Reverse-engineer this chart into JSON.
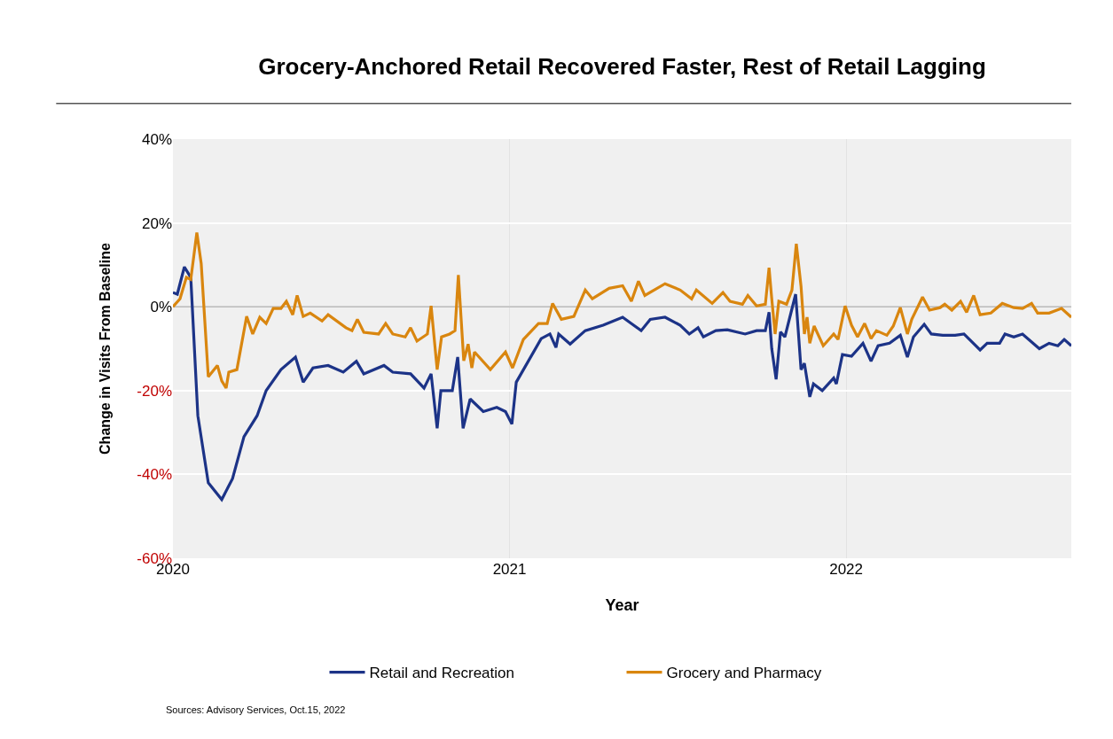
{
  "chart_data": {
    "type": "line",
    "title": "Grocery-Anchored Retail Recovered Faster, Rest of Retail Lagging",
    "xlabel": "Year",
    "ylabel": "Change in Visits From Baseline",
    "series": [
      {
        "name": "Retail and Recreation",
        "color": "#1c3387",
        "x": [
          2020.0,
          2020.013,
          2020.034,
          2020.053,
          2020.074,
          2020.105,
          2020.145,
          2020.177,
          2020.211,
          2020.25,
          2020.277,
          2020.321,
          2020.364,
          2020.387,
          2020.416,
          2020.461,
          2020.506,
          2020.545,
          2020.567,
          2020.627,
          2020.653,
          2020.706,
          2020.746,
          2020.767,
          2020.785,
          2020.796,
          2020.83,
          2020.846,
          2020.862,
          2020.883,
          2020.922,
          2020.962,
          2020.988,
          2021.007,
          2021.02,
          2021.094,
          2021.12,
          2021.138,
          2021.146,
          2021.18,
          2021.225,
          2021.278,
          2021.336,
          2021.365,
          2021.391,
          2021.418,
          2021.462,
          2021.507,
          2021.534,
          2021.56,
          2021.576,
          2021.613,
          2021.647,
          2021.7,
          2021.734,
          2021.76,
          2021.771,
          2021.779,
          2021.792,
          2021.805,
          2021.818,
          2021.85,
          2021.866,
          2021.876,
          2021.892,
          2021.903,
          2021.929,
          2021.963,
          2021.971,
          2021.989,
          2022.016,
          2022.05,
          2022.074,
          2022.095,
          2022.129,
          2022.161,
          2022.182,
          2022.2,
          2022.232,
          2022.253,
          2022.287,
          2022.324,
          2022.35,
          2022.398,
          2022.419,
          2022.456,
          2022.472,
          2022.498,
          2022.524,
          2022.574,
          2022.603,
          2022.629,
          2022.648,
          2022.669
        ],
        "values": [
          3.4,
          3.0,
          9.5,
          7.0,
          -26,
          -42,
          -46,
          -41,
          -31,
          -26,
          -20,
          -15,
          -12,
          -18,
          -14.6,
          -14,
          -15.6,
          -13,
          -16,
          -14,
          -15.6,
          -16,
          -19.4,
          -16,
          -29,
          -20,
          -20,
          -12,
          -29,
          -22,
          -25,
          -24,
          -25,
          -28,
          -18,
          -7.6,
          -6.5,
          -9.7,
          -6.5,
          -8.9,
          -5.7,
          -4.4,
          -2.5,
          -4.2,
          -5.7,
          -3,
          -2.5,
          -4.4,
          -6.5,
          -5,
          -7.2,
          -5.7,
          -5.5,
          -6.5,
          -5.7,
          -5.7,
          -1.3,
          -10,
          -17.3,
          -6,
          -7.2,
          3,
          -15,
          -13.5,
          -21.5,
          -18.4,
          -20,
          -17,
          -18.4,
          -11.4,
          -11.8,
          -8.7,
          -13,
          -9.3,
          -8.7,
          -6.8,
          -12,
          -7.2,
          -4.2,
          -6.5,
          -6.8,
          -6.8,
          -6.5,
          -10.3,
          -8.7,
          -8.7,
          -6.5,
          -7.2,
          -6.5,
          -10,
          -8.7,
          -9.3,
          -7.8,
          -9.3
        ]
      },
      {
        "name": "Grocery and Pharmacy",
        "color": "#d9860f",
        "x": [
          2020.0,
          2020.021,
          2020.04,
          2020.053,
          2020.071,
          2020.084,
          2020.105,
          2020.132,
          2020.145,
          2020.158,
          2020.166,
          2020.19,
          2020.219,
          2020.237,
          2020.258,
          2020.277,
          2020.298,
          2020.321,
          2020.337,
          2020.356,
          2020.369,
          2020.387,
          2020.408,
          2020.443,
          2020.461,
          2020.514,
          2020.532,
          2020.548,
          2020.567,
          2020.611,
          2020.632,
          2020.653,
          2020.69,
          2020.706,
          2020.725,
          2020.756,
          2020.767,
          2020.785,
          2020.798,
          2020.822,
          2020.838,
          2020.848,
          2020.864,
          2020.877,
          2020.888,
          2020.896,
          2020.943,
          2020.988,
          2021.009,
          2021.041,
          2021.086,
          2021.112,
          2021.128,
          2021.154,
          2021.191,
          2021.225,
          2021.246,
          2021.296,
          2021.336,
          2021.362,
          2021.383,
          2021.402,
          2021.462,
          2021.507,
          2021.541,
          2021.555,
          2021.602,
          2021.634,
          2021.655,
          2021.692,
          2021.708,
          2021.734,
          2021.76,
          2021.771,
          2021.779,
          2021.789,
          2021.8,
          2021.823,
          2021.839,
          2021.852,
          2021.866,
          2021.876,
          2021.884,
          2021.892,
          2021.905,
          2021.932,
          2021.963,
          2021.976,
          2021.997,
          2022.016,
          2022.034,
          2022.055,
          2022.074,
          2022.09,
          2022.121,
          2022.14,
          2022.161,
          2022.182,
          2022.195,
          2022.227,
          2022.248,
          2022.279,
          2022.293,
          2022.314,
          2022.34,
          2022.358,
          2022.379,
          2022.398,
          2022.43,
          2022.464,
          2022.498,
          2022.524,
          2022.551,
          2022.569,
          2022.603,
          2022.64,
          2022.669
        ],
        "values": [
          0,
          1.9,
          7,
          6.5,
          17.7,
          10.3,
          -16.7,
          -14,
          -17.7,
          -19.4,
          -15.6,
          -15,
          -2.3,
          -6.5,
          -2.5,
          -4,
          -0.4,
          -0.4,
          1.3,
          -1.9,
          2.7,
          -2.3,
          -1.5,
          -3.4,
          -1.9,
          -5,
          -5.7,
          -3,
          -6.1,
          -6.5,
          -4,
          -6.5,
          -7.2,
          -5,
          -8.2,
          -6.5,
          0.2,
          -15,
          -7.2,
          -6.5,
          -5.7,
          7.6,
          -12.9,
          -8.9,
          -14.6,
          -10.8,
          -15,
          -10.8,
          -14.6,
          -7.8,
          -4,
          -4,
          0.8,
          -3,
          -2.3,
          4,
          1.9,
          4.4,
          5,
          1.3,
          6.1,
          2.7,
          5.5,
          4,
          1.9,
          4,
          0.8,
          3.4,
          1.3,
          0.6,
          2.7,
          0.2,
          0.6,
          9.3,
          1.9,
          -6.5,
          1.3,
          0.6,
          4,
          15,
          4.9,
          -6.5,
          -2.5,
          -8.7,
          -4.6,
          -9.3,
          -6.5,
          -7.8,
          0.2,
          -4.4,
          -7.2,
          -4,
          -7.6,
          -5.7,
          -6.8,
          -4.6,
          -0.2,
          -6.5,
          -3,
          2.3,
          -0.8,
          -0.2,
          0.6,
          -0.8,
          1.3,
          -1.3,
          2.7,
          -1.9,
          -1.5,
          0.8,
          -0.2,
          -0.4,
          0.8,
          -1.5,
          -1.5,
          -0.4,
          -2.5
        ]
      }
    ],
    "xlim": [
      2020,
      2022.669
    ],
    "xticks": [
      2020,
      2021,
      2022
    ],
    "ylim": [
      -60,
      40
    ],
    "yticks": [
      {
        "value": -60,
        "label": "-60%"
      },
      {
        "value": -40,
        "label": "-40%"
      },
      {
        "value": -20,
        "label": "-20%"
      },
      {
        "value": 0,
        "label": "0%"
      },
      {
        "value": 20,
        "label": "20%"
      },
      {
        "value": 40,
        "label": "40%"
      }
    ],
    "ref_lines": [
      {
        "axis": "y",
        "value": 0,
        "color": "#a6a6a6"
      }
    ],
    "grid": true,
    "legend": "bottom",
    "marker": "none",
    "line_style": "solid",
    "annotations": [
      "Sources: Advisory Services, Oct.15, 2022"
    ]
  }
}
